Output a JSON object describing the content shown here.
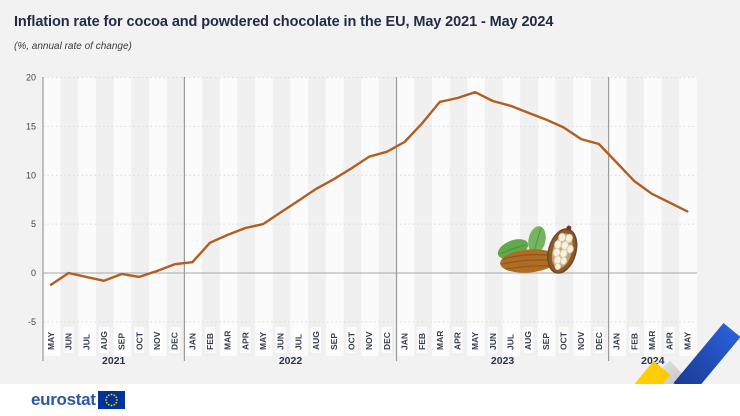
{
  "header": {
    "title": "Inflation rate for cocoa and powdered chocolate in the EU, May 2021 - May 2024",
    "subtitle": "(%, annual rate of change)"
  },
  "footer": {
    "brand": "eurostat",
    "flag_icon": "eu-flag-icon"
  },
  "decorations": {
    "cocoa_illustration": "cocoa-pods-icon",
    "corner_graphic": "trend-arrow-graphic"
  },
  "colors": {
    "background": "#f2f2f2",
    "line": "#b25e20",
    "title_text": "#232c47",
    "axis_line": "#9b9b9b",
    "zero_line": "#a8a8a8",
    "gridline_dotted": "#d9d9d9",
    "stripe_light": "#fbfbfb",
    "stripe_dark": "#f0f0f0",
    "footer_bg": "#ffffff",
    "brand_blue": "#2b57a5",
    "flag_blue": "#003399",
    "star_yellow": "#ffcc00",
    "deco_yellow": "#ffd000",
    "deco_gray": "#c9c9c9",
    "deco_blue": "#1d53c8"
  },
  "chart_data": {
    "type": "line",
    "title": "Inflation rate for cocoa and powdered chocolate in the EU, May 2021 - May 2024",
    "subtitle": "(%, annual rate of change)",
    "xlabel": "",
    "ylabel": "",
    "ylim": [
      -5,
      20
    ],
    "yticks": [
      20,
      15,
      10,
      5,
      0,
      -5
    ],
    "grid": "horizontal dotted, solid zero line, alternating monthly stripes, year separators",
    "legend": "none",
    "x": [
      "MAY",
      "JUN",
      "JUL",
      "AUG",
      "SEP",
      "OCT",
      "NOV",
      "DEC",
      "JAN",
      "FEB",
      "MAR",
      "APR",
      "MAY",
      "JUN",
      "JUL",
      "AUG",
      "SEP",
      "OCT",
      "NOV",
      "DEC",
      "JAN",
      "FEB",
      "MAR",
      "APR",
      "MAY",
      "JUN",
      "JUL",
      "AUG",
      "SEP",
      "OCT",
      "NOV",
      "DEC",
      "JAN",
      "FEB",
      "MAR",
      "APR",
      "MAY"
    ],
    "years": [
      {
        "label": "2021",
        "months": 8
      },
      {
        "label": "2022",
        "months": 12
      },
      {
        "label": "2023",
        "months": 12
      },
      {
        "label": "2024",
        "months": 5
      }
    ],
    "series": [
      {
        "name": "Inflation rate, cocoa and powdered chocolate, EU",
        "values": [
          -1.2,
          0.0,
          -0.4,
          -0.8,
          -0.1,
          -0.4,
          0.2,
          0.9,
          1.1,
          3.1,
          3.9,
          4.6,
          5.0,
          6.2,
          7.4,
          8.6,
          9.6,
          10.7,
          11.9,
          12.4,
          13.4,
          15.3,
          17.5,
          17.9,
          18.5,
          17.6,
          17.1,
          16.4,
          15.7,
          14.9,
          13.7,
          13.2,
          11.3,
          9.4,
          8.1,
          7.2,
          6.3
        ]
      }
    ]
  }
}
